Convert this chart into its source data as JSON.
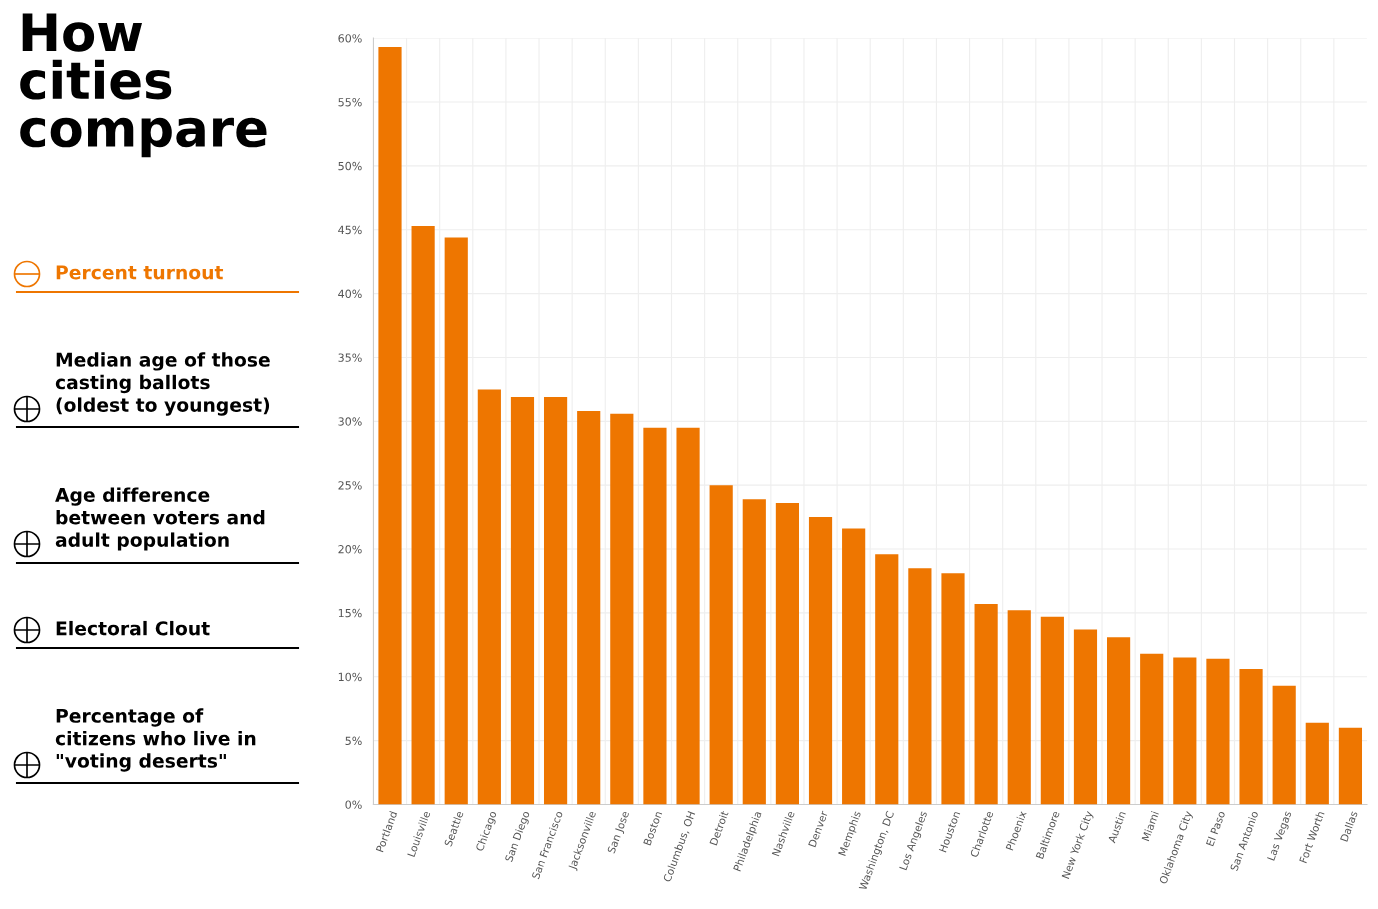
{
  "chart_data": {
    "type": "bar",
    "title": "How\ncities\ncompare",
    "annotations": [
      "Percent turnout",
      "Median age of those\ncasting ballots\n(oldest to youngest)",
      "Age difference\nbetween voters and\nadult population",
      "Electoral Clout",
      "Percentage of\ncitizens who live in\n\"voting deserts\""
    ],
    "categories": [
      "Portland",
      "Louisville",
      "Seattle",
      "Chicago",
      "San Diego",
      "San Francisco",
      "Jacksonville",
      "San Jose",
      "Boston",
      "Columbus, OH",
      "Detroit",
      "Philadelphia",
      "Nashville",
      "Denver",
      "Memphis",
      "Washington, DC",
      "Los Angeles",
      "Houston",
      "Charlotte",
      "Phoenix",
      "Baltimore",
      "New York City",
      "Austin",
      "Miami",
      "Oklahoma City",
      "El Paso",
      "San Antonio",
      "Las Vegas",
      "Fort Worth",
      "Dallas"
    ],
    "values": [
      59.3,
      45.3,
      44.4,
      32.5,
      31.9,
      31.9,
      30.8,
      30.6,
      29.5,
      29.5,
      25.0,
      23.9,
      23.6,
      22.5,
      21.6,
      19.6,
      18.5,
      18.1,
      15.7,
      15.2,
      14.7,
      13.7,
      13.1,
      11.8,
      11.5,
      11.4,
      10.6,
      9.3,
      6.4,
      6.0
    ],
    "color": "#ee7600",
    "ylim": [
      0,
      60
    ],
    "yticks": [
      {
        "value": 0,
        "label": "0%"
      },
      {
        "value": 5,
        "label": "5%"
      },
      {
        "value": 10,
        "label": "10%"
      },
      {
        "value": 15,
        "label": "15%"
      },
      {
        "value": 20,
        "label": "20%"
      },
      {
        "value": 25,
        "label": "25%"
      },
      {
        "value": 30,
        "label": "30%"
      },
      {
        "value": 35,
        "label": "35%"
      },
      {
        "value": 40,
        "label": "40%"
      },
      {
        "value": 45,
        "label": "45%"
      },
      {
        "value": 50,
        "label": "50%"
      },
      {
        "value": 55,
        "label": "55%"
      },
      {
        "value": 60,
        "label": "60%"
      }
    ],
    "grid": true
  }
}
